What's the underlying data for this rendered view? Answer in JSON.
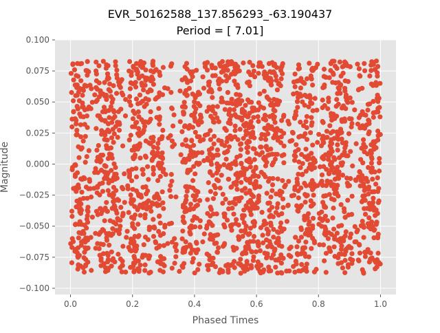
{
  "chart_data": {
    "type": "scatter",
    "title": "EVR_50162588_137.856293_-63.190437",
    "subtitle": "Period = [ 7.01]",
    "xlabel": "Phased Times",
    "ylabel": "Magnitude",
    "xlim": [
      -0.05,
      1.05
    ],
    "ylim": [
      -0.105,
      0.1
    ],
    "xticks": [
      0.0,
      0.2,
      0.4,
      0.6,
      0.8,
      1.0
    ],
    "xtick_labels": [
      "0.0",
      "0.2",
      "0.4",
      "0.6",
      "0.8",
      "1.0"
    ],
    "yticks": [
      -0.1,
      -0.075,
      -0.05,
      -0.025,
      0.0,
      0.025,
      0.05,
      0.075,
      0.1
    ],
    "ytick_labels": [
      "−0.100",
      "−0.075",
      "−0.050",
      "−0.025",
      "0.000",
      "0.025",
      "0.050",
      "0.075",
      "0.100"
    ],
    "grid": true,
    "style": "ggplot",
    "colors": {
      "points": "#E24A33",
      "panel": "#E5E5E5",
      "grid": "#FFFFFF",
      "text": "#555555",
      "title": "#000000"
    },
    "series": [
      {
        "phase_range": [
          0.0,
          1.0
        ],
        "magnitude_range": [
          -0.088,
          0.083
        ],
        "dense_bands": [
          [
            0.0,
            0.06
          ],
          [
            0.08,
            0.17
          ],
          [
            0.19,
            0.3
          ],
          [
            0.36,
            0.42
          ],
          [
            0.44,
            0.69
          ],
          [
            0.72,
            0.79
          ],
          [
            0.81,
            0.91
          ],
          [
            0.93,
            1.0
          ]
        ],
        "sparse_gaps": [
          [
            0.06,
            0.08
          ],
          [
            0.17,
            0.19
          ],
          [
            0.3,
            0.36
          ],
          [
            0.42,
            0.44
          ],
          [
            0.69,
            0.72
          ],
          [
            0.79,
            0.81
          ],
          [
            0.91,
            0.93
          ]
        ]
      }
    ]
  }
}
